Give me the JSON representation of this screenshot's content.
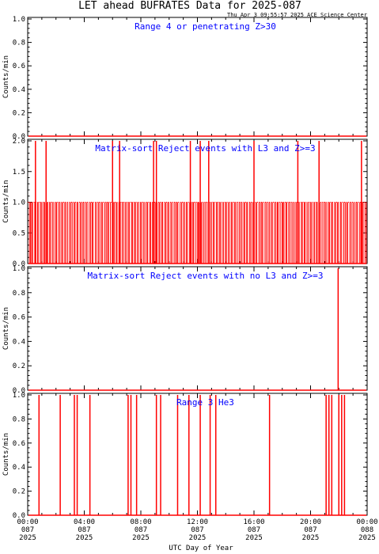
{
  "title": "LET ahead BUFRATES Data for 2025-087",
  "subtitle": "Thu Apr  3 09:55:57 2025 ACE Science Center",
  "colors": {
    "trace": "#ff0000",
    "panel_title": "#0000ff",
    "axes": "#000000"
  },
  "chart_data": [
    {
      "type": "line",
      "title": "Range 4 or  penetrating Z>30",
      "ylabel": "Counts/min",
      "ylim": [
        0,
        1.0
      ],
      "yticks": [
        "0.0",
        "0.2",
        "0.4",
        "0.6",
        "0.8",
        "1.0"
      ],
      "spikes": []
    },
    {
      "type": "line",
      "title": "Matrix-sort Reject events with L3 and Z>=3",
      "ylabel": "Counts/min",
      "ylim": [
        0,
        2.0
      ],
      "yticks": [
        "0.0",
        "0.5",
        "1.0",
        "1.5",
        "2.0"
      ],
      "base_values": [
        [
          0.12,
          0.2,
          0.28,
          0.35,
          0.5,
          0.58,
          0.7,
          0.78,
          0.92,
          1.0,
          1.12,
          1.2,
          1.35,
          1.42,
          1.55,
          1.62,
          1.75,
          1.85,
          1.98,
          2.05,
          2.18,
          2.28,
          2.4,
          2.48,
          2.62,
          2.7,
          2.82,
          2.95,
          3.05,
          3.15,
          3.28,
          3.35,
          3.48,
          3.55,
          3.7,
          3.78,
          3.9,
          3.98,
          4.12,
          4.2,
          4.35,
          4.45,
          4.55,
          4.62,
          4.78,
          4.88,
          5.0,
          5.1,
          5.22,
          5.3,
          5.45,
          5.55,
          5.65,
          5.72,
          5.85,
          5.98
        ],
        [
          6.05,
          6.12,
          6.25,
          6.32,
          6.45,
          6.55,
          6.68,
          6.78,
          6.9,
          7.0,
          7.12,
          7.2,
          7.35,
          7.42,
          7.55,
          7.62,
          7.75,
          7.85,
          7.98,
          8.05,
          8.18,
          8.28,
          8.4,
          8.48,
          8.62,
          8.7,
          8.82,
          8.95,
          9.05,
          9.15,
          9.28,
          9.35,
          9.48,
          9.55,
          9.7,
          9.78,
          9.9,
          9.98,
          10.12,
          10.2,
          10.35,
          10.45,
          10.55,
          10.62,
          10.78,
          10.88,
          11.0,
          11.1,
          11.22,
          11.3,
          11.45,
          11.55,
          11.65,
          11.72,
          11.85,
          11.98
        ],
        [
          12.05,
          12.12,
          12.25,
          12.32,
          12.45,
          12.55,
          12.68,
          12.78,
          12.9,
          13.0,
          13.12,
          13.2,
          13.35,
          13.42,
          13.55,
          13.62,
          13.75,
          13.85,
          13.98,
          14.05,
          14.18,
          14.28,
          14.4,
          14.48,
          14.62,
          14.7,
          14.82,
          14.95,
          15.05,
          15.15,
          15.28,
          15.35,
          15.48,
          15.55,
          15.7,
          15.78,
          15.9,
          15.98,
          16.12,
          16.2,
          16.35,
          16.45,
          16.55,
          16.62,
          16.78,
          16.88,
          17.0,
          17.1,
          17.22,
          17.3,
          17.45,
          17.55,
          17.65,
          17.72,
          17.85,
          17.98
        ],
        [
          18.05,
          18.12,
          18.25,
          18.32,
          18.45,
          18.55,
          18.68,
          18.78,
          18.9,
          19.0,
          19.12,
          19.2,
          19.35,
          19.42,
          19.55,
          19.62,
          19.75,
          19.85,
          19.98,
          20.05,
          20.18,
          20.28,
          20.4,
          20.48,
          20.62,
          20.7,
          20.82,
          20.95,
          21.05,
          21.15,
          21.28,
          21.35,
          21.48,
          21.55,
          21.7,
          21.78,
          21.9,
          21.98,
          22.12,
          22.2,
          22.35,
          22.45,
          22.55,
          22.62,
          22.78,
          22.88,
          23.0,
          23.1,
          23.22,
          23.3,
          23.45,
          23.55,
          23.65,
          23.72,
          23.85,
          23.95
        ]
      ],
      "base_value": 1,
      "spikes": [
        {
          "x": 0.55,
          "y": 2.0
        },
        {
          "x": 1.3,
          "y": 2.0
        },
        {
          "x": 6.0,
          "y": 2.0
        },
        {
          "x": 6.5,
          "y": 2.0
        },
        {
          "x": 8.9,
          "y": 2.0
        },
        {
          "x": 9.1,
          "y": 2.0
        },
        {
          "x": 11.5,
          "y": 2.0
        },
        {
          "x": 12.2,
          "y": 2.0
        },
        {
          "x": 12.8,
          "y": 2.0
        },
        {
          "x": 16.0,
          "y": 2.0
        },
        {
          "x": 19.1,
          "y": 2.0
        },
        {
          "x": 20.6,
          "y": 2.0
        },
        {
          "x": 23.6,
          "y": 2.0
        }
      ]
    },
    {
      "type": "line",
      "title": "Matrix-sort Reject events with no L3 and Z>=3",
      "ylabel": "Counts/min",
      "ylim": [
        0,
        1.0
      ],
      "yticks": [
        "0.0",
        "0.2",
        "0.4",
        "0.6",
        "0.8",
        "1.0"
      ],
      "spikes": [
        {
          "x": 21.95,
          "y": 1.0
        }
      ]
    },
    {
      "type": "line",
      "title": "Range 3 He3",
      "ylabel": "Counts/min",
      "ylim": [
        0,
        1.0
      ],
      "yticks": [
        "0.0",
        "0.2",
        "0.4",
        "0.6",
        "0.8",
        "1.0"
      ],
      "spikes": [
        {
          "x": 0.8,
          "y": 1.0
        },
        {
          "x": 2.3,
          "y": 1.0
        },
        {
          "x": 3.3,
          "y": 1.0
        },
        {
          "x": 3.5,
          "y": 1.0
        },
        {
          "x": 4.4,
          "y": 1.0
        },
        {
          "x": 7.1,
          "y": 1.0
        },
        {
          "x": 7.3,
          "y": 1.0
        },
        {
          "x": 7.7,
          "y": 1.0
        },
        {
          "x": 9.1,
          "y": 1.0
        },
        {
          "x": 9.4,
          "y": 1.0
        },
        {
          "x": 10.6,
          "y": 1.0
        },
        {
          "x": 11.4,
          "y": 1.0
        },
        {
          "x": 12.2,
          "y": 1.0
        },
        {
          "x": 12.9,
          "y": 1.0
        },
        {
          "x": 13.3,
          "y": 1.0
        },
        {
          "x": 17.1,
          "y": 1.0
        },
        {
          "x": 21.1,
          "y": 1.0
        },
        {
          "x": 21.3,
          "y": 1.0
        },
        {
          "x": 21.5,
          "y": 1.0
        },
        {
          "x": 22.0,
          "y": 1.0
        },
        {
          "x": 22.2,
          "y": 1.0
        },
        {
          "x": 22.4,
          "y": 1.0
        }
      ]
    }
  ],
  "x_axis": {
    "xlim": [
      0,
      24
    ],
    "ticks": [
      {
        "x": 0,
        "time": "00:00",
        "doy": "087",
        "year": "2025"
      },
      {
        "x": 4,
        "time": "04:00",
        "doy": "087",
        "year": "2025"
      },
      {
        "x": 8,
        "time": "08:00",
        "doy": "087",
        "year": "2025"
      },
      {
        "x": 12,
        "time": "12:00",
        "doy": "087",
        "year": "2025"
      },
      {
        "x": 16,
        "time": "16:00",
        "doy": "087",
        "year": "2025"
      },
      {
        "x": 20,
        "time": "20:00",
        "doy": "087",
        "year": "2025"
      },
      {
        "x": 24,
        "time": "00:00",
        "doy": "088",
        "year": "2025"
      }
    ],
    "xlabel": "UTC Day of Year"
  }
}
